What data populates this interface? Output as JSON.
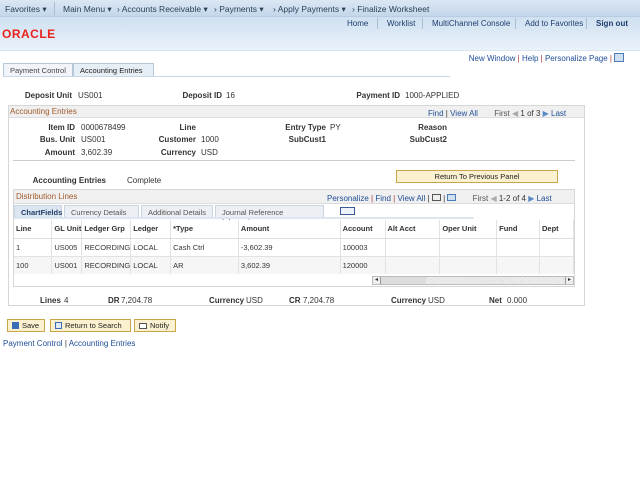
{
  "nav": {
    "favorites": "Favorites",
    "main_menu": "Main Menu",
    "crumbs": [
      "Accounts Receivable",
      "Payments",
      "Apply Payments"
    ],
    "current": "Finalize Worksheet"
  },
  "header_links": {
    "home": "Home",
    "worklist": "Worklist",
    "multichannel": "MultiChannel Console",
    "add_favorites": "Add to Favorites",
    "sign_out": "Sign out"
  },
  "logo": "ORACLE",
  "page_links": {
    "new_window": "New Window",
    "help": "Help",
    "personalize": "Personalize Page"
  },
  "tabs": [
    {
      "label": "Payment Control"
    },
    {
      "label": "Accounting Entries",
      "active": true
    }
  ],
  "deposit": {
    "unit_label": "Deposit Unit",
    "unit": "US001",
    "id_label": "Deposit ID",
    "id": "16",
    "payment_label": "Payment ID",
    "payment": "1000-APPLIED"
  },
  "acct_section": {
    "title": "Accounting Entries",
    "find": "Find",
    "view_all": "View All",
    "first": "First",
    "range": "1 of 3",
    "last": "Last"
  },
  "item": {
    "item_id_label": "Item ID",
    "item_id": "0000678499",
    "line_label": "Line",
    "entry_type_label": "Entry Type",
    "entry_type": "PY",
    "reason_label": "Reason",
    "bus_unit_label": "Bus. Unit",
    "bus_unit": "US001",
    "customer_label": "Customer",
    "customer": "1000",
    "subcust1_label": "SubCust1",
    "subcust2_label": "SubCust2",
    "amount_label": "Amount",
    "amount": "3,602.39",
    "currency_label": "Currency",
    "currency": "USD"
  },
  "status": {
    "label": "Accounting Entries",
    "value": "Complete",
    "return_button": "Return To Previous Panel"
  },
  "dist": {
    "title": "Distribution Lines",
    "personalize": "Personalize",
    "find": "Find",
    "view_all": "View All",
    "first": "First",
    "range": "1-2 of 4",
    "last": "Last",
    "tabs": [
      "ChartFields",
      "Currency Details",
      "Additional Details",
      "Journal Reference Information"
    ],
    "columns": [
      "Line",
      "GL Unit",
      "Ledger Grp",
      "Ledger",
      "*Type",
      "Amount",
      "Account",
      "Alt Acct",
      "Oper Unit",
      "Fund",
      "Dept"
    ],
    "rows": [
      [
        "1",
        "US005",
        "RECORDING",
        "LOCAL",
        "Cash Ctrl",
        "-3,602.39",
        "100003",
        "",
        "",
        "",
        ""
      ],
      [
        "100",
        "US001",
        "RECORDING",
        "LOCAL",
        "AR",
        "3,602.39",
        "120000",
        "",
        "",
        "",
        ""
      ]
    ],
    "scroll_position": 0
  },
  "totals": {
    "lines_label": "Lines",
    "lines": "4",
    "dr_label": "DR",
    "dr": "7,204.78",
    "cur1_label": "Currency",
    "cur1": "USD",
    "cr_label": "CR",
    "cr": "7,204.78",
    "cur2_label": "Currency",
    "cur2": "USD",
    "net_label": "Net",
    "net": "0.000"
  },
  "buttons": {
    "save": "Save",
    "return_search": "Return to Search",
    "notify": "Notify"
  },
  "footer": {
    "link1": "Payment Control",
    "link2": "Accounting Entries"
  }
}
